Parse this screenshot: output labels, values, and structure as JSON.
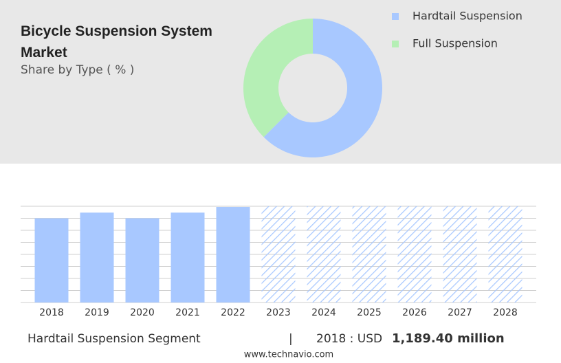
{
  "chart_data": [
    {
      "type": "pie",
      "title": "Bicycle Suspension System Market",
      "subtitle": "Share by Type ( % )",
      "categories": [
        "Hardtail Suspension",
        "Full Suspension"
      ],
      "values": [
        62.5,
        37.5
      ],
      "colors": [
        "#a8c8ff",
        "#b5efb5"
      ],
      "donut": true,
      "legend": "top-right"
    },
    {
      "type": "bar",
      "categories": [
        "2018",
        "2019",
        "2020",
        "2021",
        "2022",
        "2023",
        "2024",
        "2025",
        "2026",
        "2027",
        "2028"
      ],
      "values": [
        1189.4,
        1270,
        1190,
        1270,
        1350,
        null,
        null,
        null,
        null,
        null,
        null
      ],
      "color": "#a8c8ff",
      "ylim": [
        0,
        1360
      ],
      "grid": true
    }
  ],
  "footer": {
    "segment": "Hardtail Suspension Segment",
    "separator": "|",
    "year": "2018 : USD",
    "value": "1,189.40 million"
  },
  "source": "www.technavio.com"
}
